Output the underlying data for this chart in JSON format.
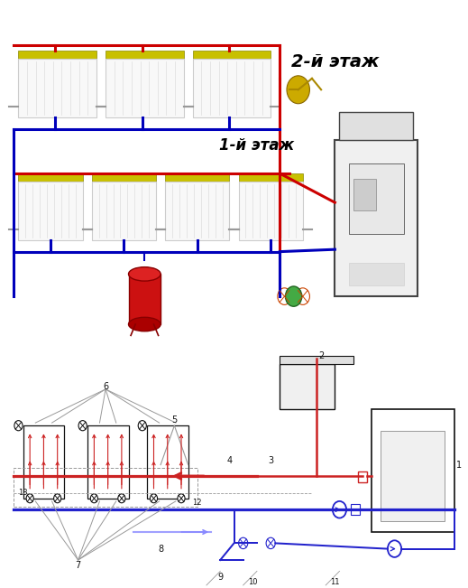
{
  "title_floor2": "2-й этаж",
  "title_floor1": "1-й этаж",
  "red": "#cc0000",
  "blue": "#0000bb",
  "black": "#111111",
  "gray": "#999999",
  "dark_gray": "#555555",
  "light_gray": "#dddddd",
  "bg": "#ffffff",
  "rad_body": "#f5f5f5",
  "rad_stripe": "#c8c800",
  "tank_red": "#cc1111",
  "lw_pipe": 2.2,
  "lw_thin": 1.0,
  "fs_floor": 13,
  "fs_num": 7
}
